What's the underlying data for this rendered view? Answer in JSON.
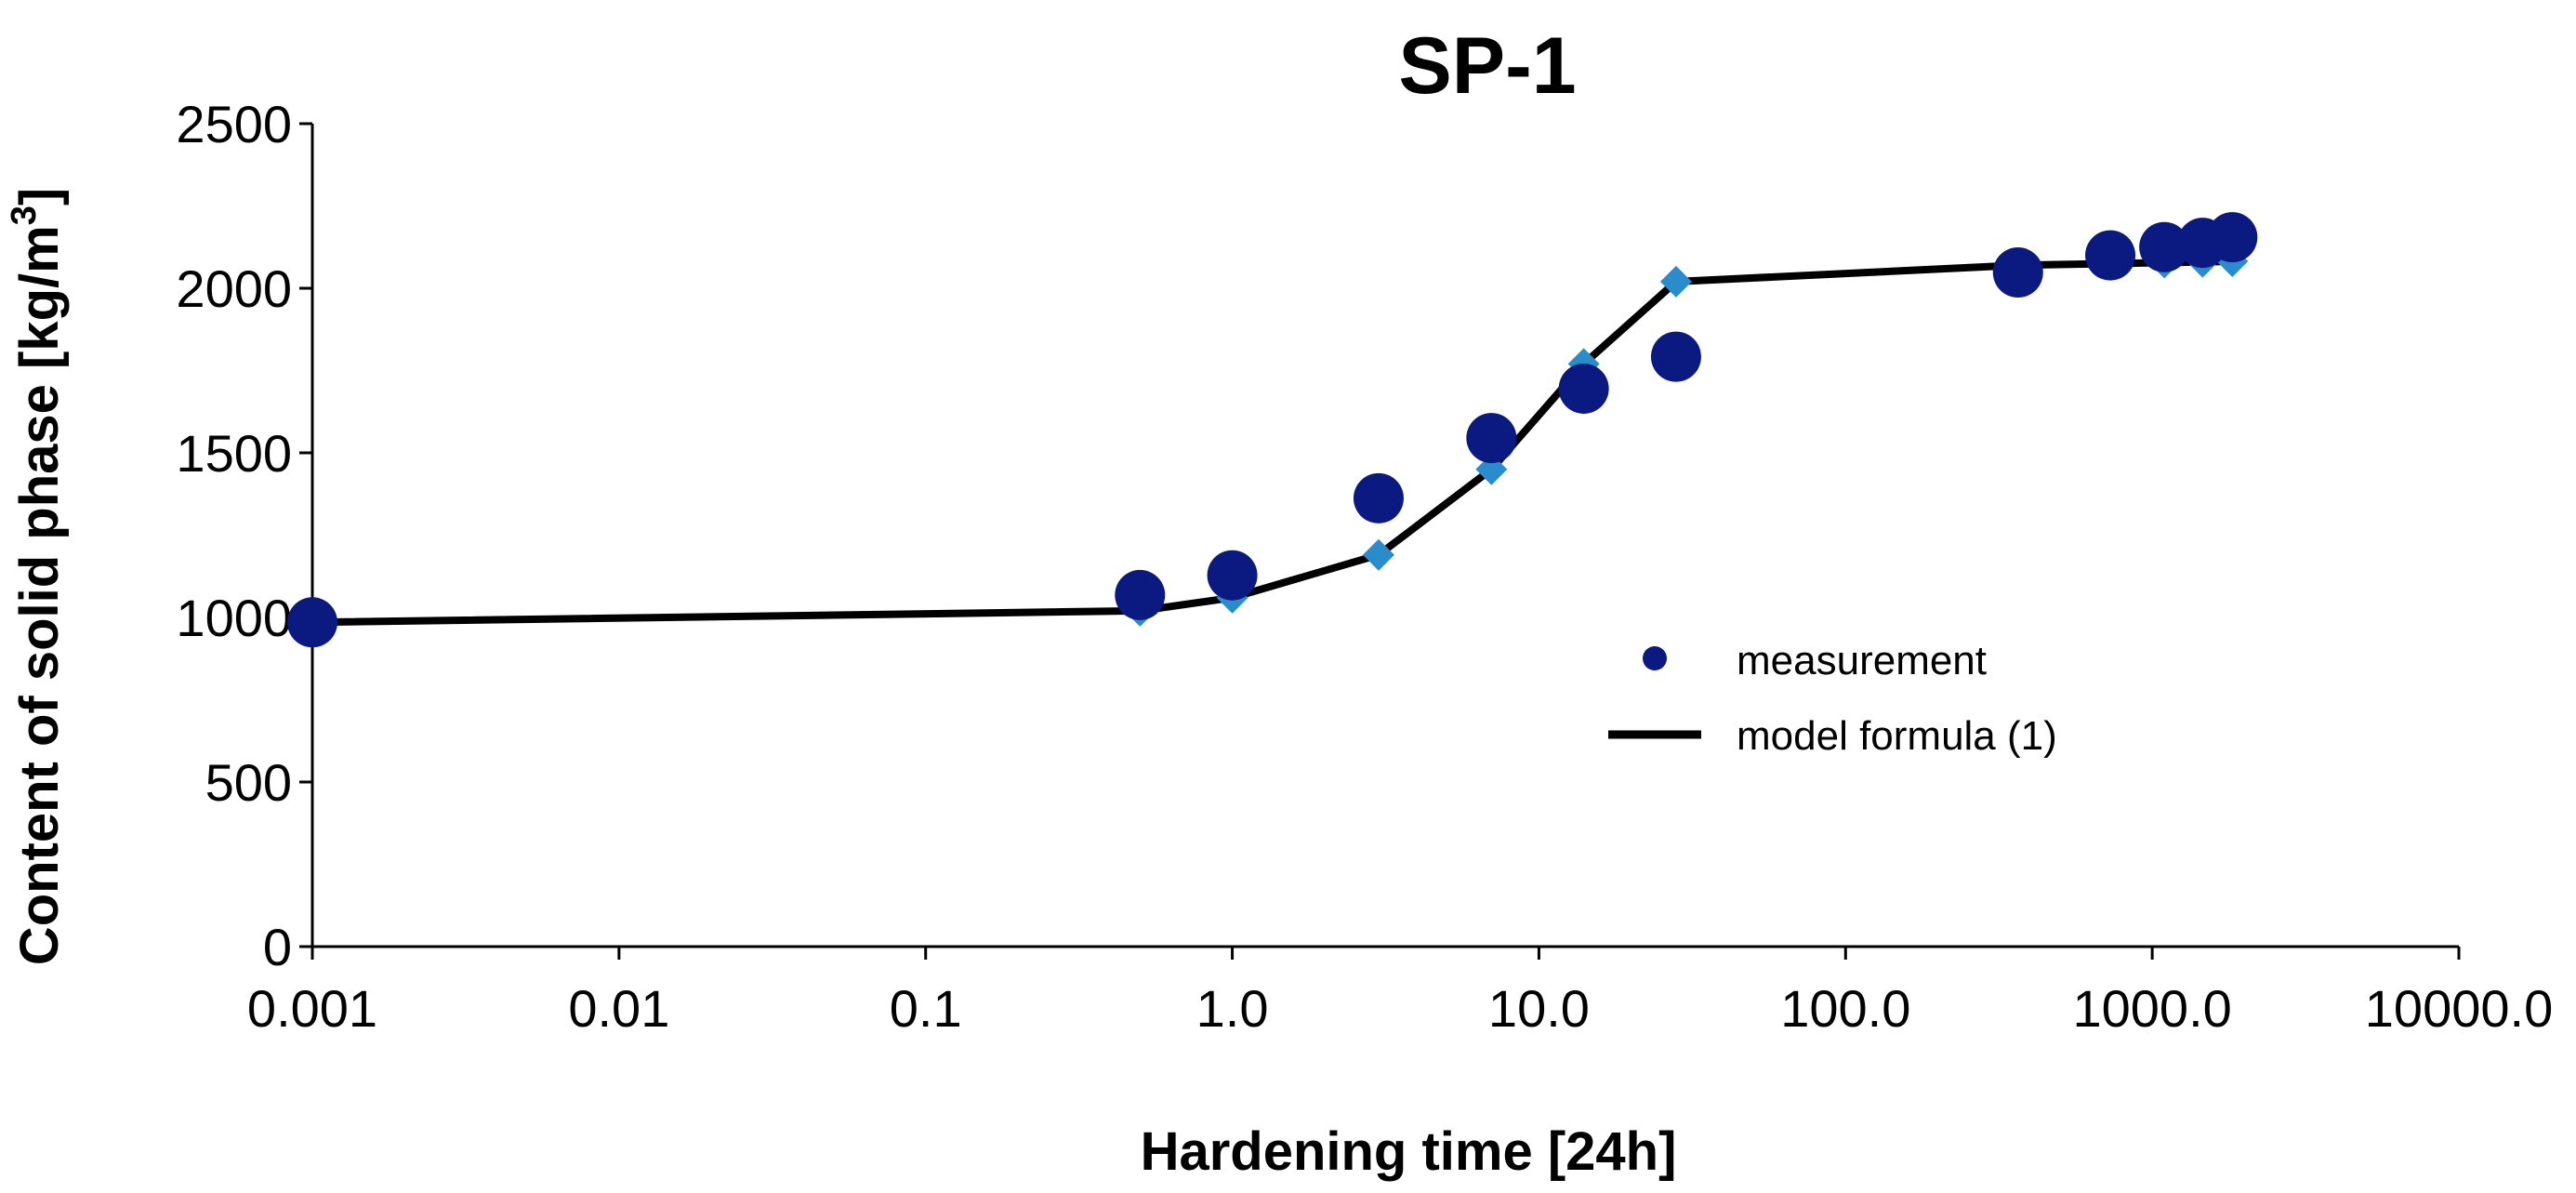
{
  "chart_data": {
    "type": "scatter",
    "title": "SP-1",
    "xlabel": "Hardening time [24h]",
    "ylabel_main": "Content of solid phase [kg/m",
    "ylabel_sup": "3",
    "ylabel_end": "]",
    "x_scale": "log",
    "xlim": [
      0.001,
      10000
    ],
    "ylim": [
      0,
      2500
    ],
    "grid": false,
    "legend_position": "center-right",
    "x_ticks": [
      {
        "value": 0.001,
        "label": "0.001"
      },
      {
        "value": 0.01,
        "label": "0.01"
      },
      {
        "value": 0.1,
        "label": "0.1"
      },
      {
        "value": 1,
        "label": "1.0"
      },
      {
        "value": 10,
        "label": "10.0"
      },
      {
        "value": 100,
        "label": "100.0"
      },
      {
        "value": 1000,
        "label": "1000.0"
      },
      {
        "value": 10000,
        "label": "10000.0"
      }
    ],
    "y_ticks": [
      {
        "value": 0,
        "label": "0"
      },
      {
        "value": 500,
        "label": "500"
      },
      {
        "value": 1000,
        "label": "1000"
      },
      {
        "value": 1500,
        "label": "1500"
      },
      {
        "value": 2000,
        "label": "2000"
      },
      {
        "value": 2500,
        "label": "2500"
      }
    ],
    "series": [
      {
        "name": "measurement",
        "kind": "points",
        "color": "#0b1a80",
        "points": [
          {
            "x": 0.001,
            "y": 985
          },
          {
            "x": 0.5,
            "y": 1068
          },
          {
            "x": 1,
            "y": 1128
          },
          {
            "x": 3,
            "y": 1362
          },
          {
            "x": 7,
            "y": 1545
          },
          {
            "x": 14,
            "y": 1695
          },
          {
            "x": 28,
            "y": 1792
          },
          {
            "x": 365,
            "y": 2048
          },
          {
            "x": 730,
            "y": 2100
          },
          {
            "x": 1095,
            "y": 2125
          },
          {
            "x": 1460,
            "y": 2138
          },
          {
            "x": 1825,
            "y": 2155
          }
        ]
      },
      {
        "name": "model formula (1)",
        "kind": "line",
        "color": "#000000",
        "marker_color": "#2b8ccc",
        "points": [
          {
            "x": 0.001,
            "y": 985
          },
          {
            "x": 0.5,
            "y": 1020
          },
          {
            "x": 1,
            "y": 1060
          },
          {
            "x": 3,
            "y": 1190
          },
          {
            "x": 7,
            "y": 1450
          },
          {
            "x": 14,
            "y": 1770
          },
          {
            "x": 28,
            "y": 2020
          },
          {
            "x": 365,
            "y": 2070
          },
          {
            "x": 730,
            "y": 2075
          },
          {
            "x": 1095,
            "y": 2078
          },
          {
            "x": 1460,
            "y": 2080
          },
          {
            "x": 1825,
            "y": 2082
          }
        ]
      }
    ]
  }
}
